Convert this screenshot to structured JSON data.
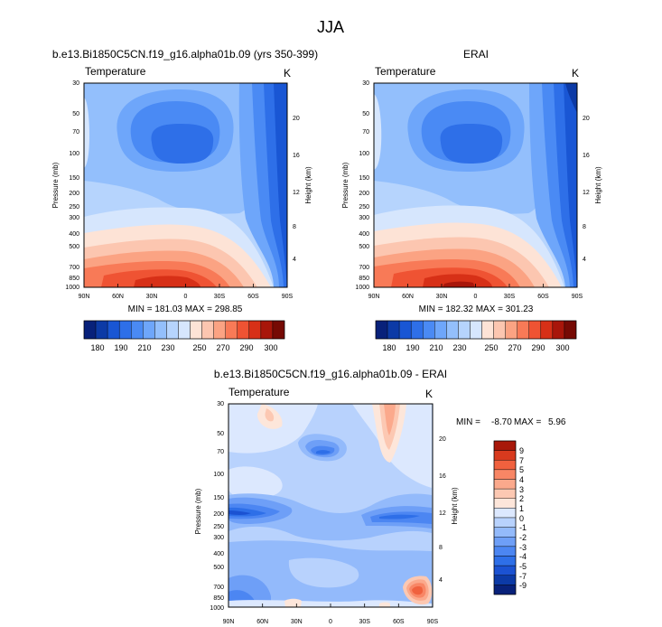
{
  "figure": {
    "title": "JJA",
    "xticks": [
      "90N",
      "60N",
      "30N",
      "0",
      "30S",
      "60S",
      "90S"
    ],
    "yticks": [
      "30",
      "50",
      "70",
      "100",
      "150",
      "200",
      "250",
      "300",
      "400",
      "500",
      "700",
      "850",
      "1000"
    ],
    "ylabel": "Pressure (mb)",
    "y2label": "Height (km)"
  },
  "chart_data": [
    {
      "type": "heatmap",
      "title": "b.e13.Bi1850C5CN.f19_g16.alpha01b.09 (yrs 350-399)",
      "left_label": "Temperature",
      "right_label": "K",
      "stats": "MIN = 181.03  MAX = 298.85",
      "y2ticks": [
        "4",
        "8",
        "12",
        "16",
        "20"
      ],
      "colorbar_ticks": [
        "180",
        "190",
        "210",
        "230",
        "250",
        "270",
        "290",
        "300"
      ],
      "units": "K",
      "min": 181.03,
      "max": 298.85
    },
    {
      "type": "heatmap",
      "title": "ERAI",
      "left_label": "Temperature",
      "right_label": "K",
      "stats": "MIN = 182.32  MAX = 301.23",
      "y2ticks": [
        "4",
        "8",
        "12",
        "16",
        "20"
      ],
      "colorbar_ticks": [
        "180",
        "190",
        "210",
        "230",
        "250",
        "270",
        "290",
        "300"
      ],
      "units": "K",
      "min": 182.32,
      "max": 301.23
    },
    {
      "type": "heatmap",
      "title": "b.e13.Bi1850C5CN.f19_g16.alpha01b.09 - ERAI",
      "left_label": "Temperature",
      "right_label": "K",
      "stats_min_label": "MIN =",
      "stats_min": "-8.70",
      "stats_max_label": "MAX =",
      "stats_max": "5.96",
      "y2ticks": [
        "4",
        "8",
        "12",
        "16",
        "20"
      ],
      "colorbar_ticks": [
        "9",
        "7",
        "5",
        "4",
        "3",
        "2",
        "1",
        "0",
        "-1",
        "-2",
        "-3",
        "-4",
        "-5",
        "-7",
        "-9"
      ],
      "units": "K",
      "min": -8.7,
      "max": 5.96
    }
  ],
  "colors": {
    "temp_palette": [
      "#08217a",
      "#0c3aa6",
      "#1956d4",
      "#2e6fe8",
      "#4a8af4",
      "#6ea6fa",
      "#93bffc",
      "#b6d4fd",
      "#d6e6fd",
      "#fde3d6",
      "#fcc6b0",
      "#fba383",
      "#f87a57",
      "#ef5333",
      "#d73017",
      "#a8160a",
      "#760a04"
    ],
    "diff_palette": [
      "#08217a",
      "#0c3aa6",
      "#1b52d2",
      "#2e6fe8",
      "#4c86f2",
      "#6e9ff7",
      "#93bafb",
      "#b8d2fd",
      "#dce8fe",
      "#fde6da",
      "#fcc8b2",
      "#fba98c",
      "#f88665",
      "#f0613e",
      "#d83a1e",
      "#a8180a"
    ]
  }
}
